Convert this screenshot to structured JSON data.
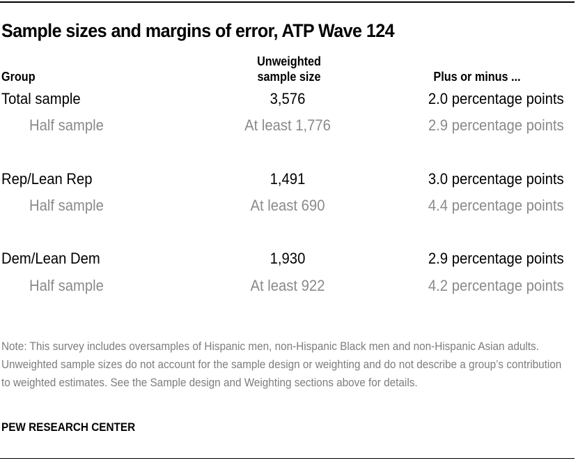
{
  "title": "Sample sizes and margins of error, ATP Wave 124",
  "headers": {
    "group": "Group",
    "sample_size_line1": "Unweighted",
    "sample_size_line2": "sample size",
    "moe": "Plus or minus ..."
  },
  "rows": [
    {
      "group": "Total sample",
      "size": "3,576",
      "moe": "2.0 percentage points",
      "type": "main"
    },
    {
      "group": "Half sample",
      "size": "At least 1,776",
      "moe": "2.9 percentage points",
      "type": "sub"
    },
    {
      "group": "Rep/Lean Rep",
      "size": "1,491",
      "moe": "3.0 percentage points",
      "type": "main"
    },
    {
      "group": "Half sample",
      "size": "At least 690",
      "moe": "4.4 percentage points",
      "type": "sub"
    },
    {
      "group": "Dem/Lean Dem",
      "size": "1,930",
      "moe": "2.9 percentage points",
      "type": "main"
    },
    {
      "group": "Half sample",
      "size": "At least 922",
      "moe": "4.2 percentage points",
      "type": "sub"
    }
  ],
  "note": "Note: This survey includes oversamples of Hispanic men, non-Hispanic Black men and non-Hispanic Asian adults. Unweighted sample sizes do not account for the sample design or weighting and do not describe a group’s contribution to weighted estimates. See the Sample design and Weighting sections above for details.",
  "source": "PEW RESEARCH CENTER",
  "colors": {
    "text": "#000000",
    "subtext": "#8a8a8a",
    "note": "#7d7d7d"
  }
}
